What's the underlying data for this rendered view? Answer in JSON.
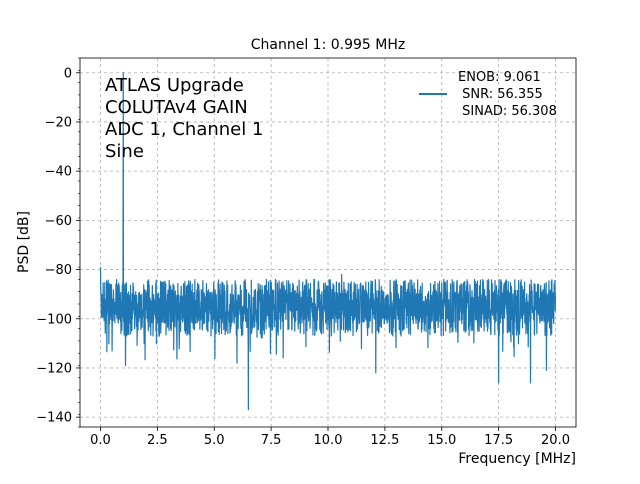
{
  "chart_data": {
    "type": "line",
    "title": "Channel 1: 0.995 MHz",
    "xlabel": "Frequency [MHz]",
    "ylabel": "PSD [dB]",
    "xlim": [
      -0.9,
      20.9
    ],
    "ylim": [
      -144,
      6
    ],
    "xticks": [
      0.0,
      2.5,
      5.0,
      7.5,
      10.0,
      12.5,
      15.0,
      17.5,
      20.0
    ],
    "xtick_labels": [
      "0.0",
      "2.5",
      "5.0",
      "7.5",
      "10.0",
      "12.5",
      "15.0",
      "17.5",
      "20.0"
    ],
    "yticks": [
      0,
      -20,
      -40,
      -60,
      -80,
      -100,
      -120,
      -140
    ],
    "ytick_labels": [
      "0",
      "−20",
      "−40",
      "−60",
      "−80",
      "−100",
      "−120",
      "−140"
    ],
    "grid": true,
    "grid_style": "dashed",
    "line_color": "#1f77b4",
    "annotation_lines": [
      "ATLAS Upgrade",
      "COLUTAv4 GAIN",
      "ADC 1, Channel 1",
      "Sine"
    ],
    "legend_placement": "top-right",
    "legend_lines": [
      "ENOB: 9.061",
      " SNR: 56.355",
      " SINAD: 56.308"
    ],
    "series": [
      {
        "noise_floor_db": -95,
        "noise_band_db": [
          -107,
          -84
        ],
        "peaks": [
          {
            "x": 0.0,
            "y": -79
          },
          {
            "x": 0.995,
            "y": 0
          }
        ],
        "spurs": [
          {
            "x": 6.5,
            "y": -137
          },
          {
            "x": 12.1,
            "y": -122
          },
          {
            "x": 17.5,
            "y": -126
          },
          {
            "x": 18.9,
            "y": -126
          },
          {
            "x": 1.1,
            "y": -119
          },
          {
            "x": 6.0,
            "y": -118
          },
          {
            "x": 19.6,
            "y": -121
          },
          {
            "x": 10.6,
            "y": -82
          }
        ]
      }
    ]
  }
}
